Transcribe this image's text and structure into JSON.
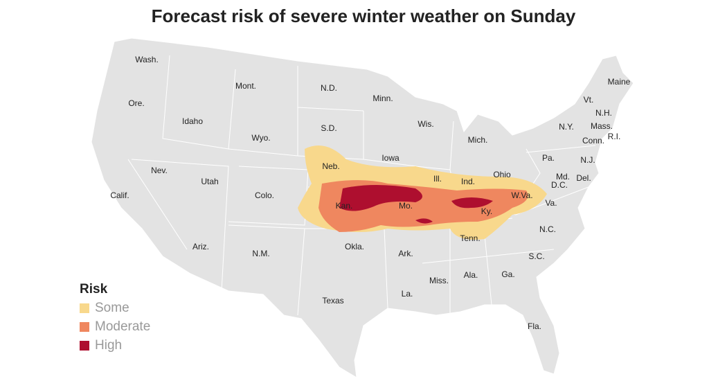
{
  "title": "Forecast risk of severe winter weather on Sunday",
  "legend": {
    "title": "Risk",
    "items": [
      {
        "label": "Some",
        "color": "#f8d88c"
      },
      {
        "label": "Moderate",
        "color": "#ef875f"
      },
      {
        "label": "High",
        "color": "#ae0f2f"
      }
    ]
  },
  "state_labels": [
    "Wash.",
    "Ore.",
    "Calif.",
    "Idaho",
    "Nev.",
    "Mont.",
    "Wyo.",
    "Utah",
    "Ariz.",
    "Colo.",
    "N.M.",
    "N.D.",
    "S.D.",
    "Neb.",
    "Kan.",
    "Okla.",
    "Texas",
    "Minn.",
    "Iowa",
    "Mo.",
    "Ark.",
    "La.",
    "Wis.",
    "Ill.",
    "Mich.",
    "Ind.",
    "Ohio",
    "Ky.",
    "Tenn.",
    "Miss.",
    "Ala.",
    "Ga.",
    "Fla.",
    "S.C.",
    "N.C.",
    "Va.",
    "W.Va.",
    "Pa.",
    "N.Y.",
    "Md.",
    "D.C.",
    "Del.",
    "N.J.",
    "Conn.",
    "R.I.",
    "Mass.",
    "N.H.",
    "Vt.",
    "Maine"
  ]
}
